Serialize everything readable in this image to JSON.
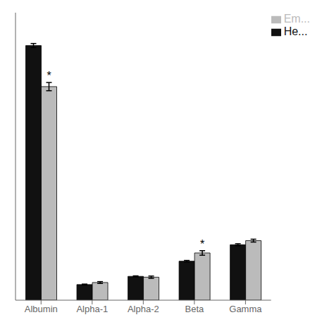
{
  "chart_data": {
    "type": "bar",
    "categories": [
      "Albumin",
      "Alpha-1",
      "Alpha-2",
      "Beta",
      "Gamma"
    ],
    "series": [
      {
        "name": "He...",
        "color": "#111111",
        "values": [
          62.0,
          3.8,
          5.8,
          9.5,
          13.5
        ],
        "errors": [
          0.5,
          0.12,
          0.12,
          0.18,
          0.25
        ]
      },
      {
        "name": "Em...",
        "color": "#bbbbbb",
        "values": [
          52.0,
          4.3,
          5.6,
          11.5,
          14.5
        ],
        "errors": [
          1.0,
          0.22,
          0.28,
          0.55,
          0.35
        ]
      }
    ],
    "ylim": [
      0,
      70
    ],
    "yticks": [],
    "tick_labels": "x",
    "legend": "upper right",
    "grid": false,
    "annotations": [
      {
        "text": "*",
        "category": "Albumin",
        "series": "Em..."
      },
      {
        "text": "*",
        "category": "Beta",
        "series": "Em..."
      }
    ]
  }
}
